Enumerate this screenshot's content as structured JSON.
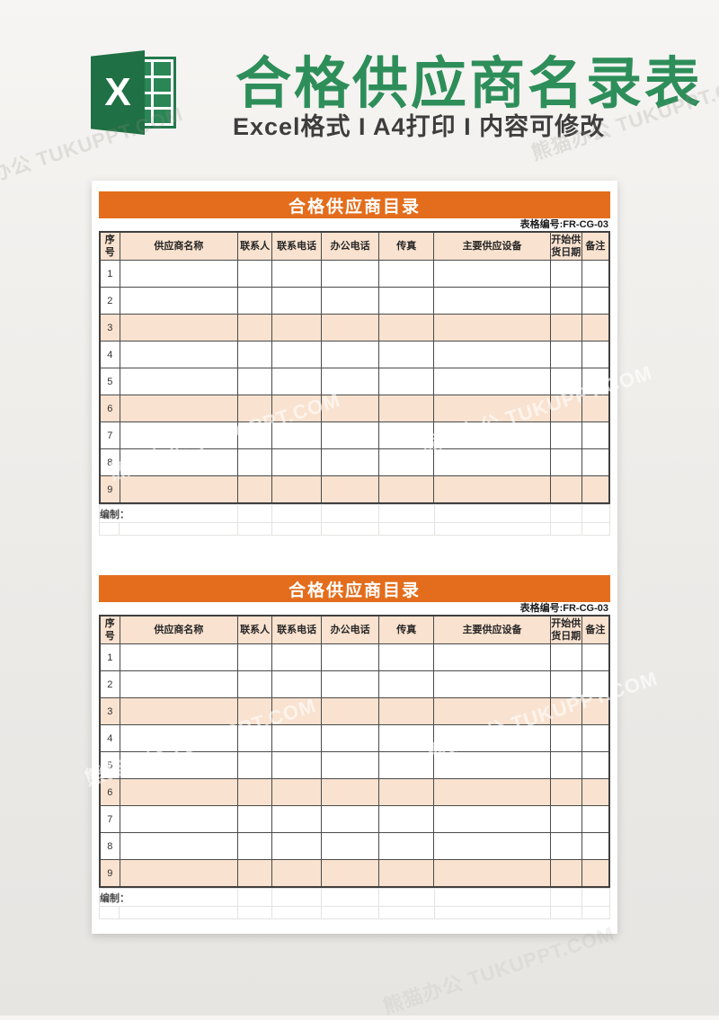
{
  "banner": {
    "title": "合格供应商名录表",
    "subtitle": "Excel格式 I A4打印 I 内容可修改",
    "logo_letter": "X",
    "title_color": "#2e8e5a",
    "logo_green": "#1f7044"
  },
  "watermark": {
    "text": "熊猫办公 TUKUPPT.COM"
  },
  "table": {
    "title": "合格供应商目录",
    "code": "表格编号:FR-CG-03",
    "accent_color": "#e36d1c",
    "shade_color": "#f9e2cf",
    "columns": [
      "序号",
      "供应商名称",
      "联系人",
      "联系电话",
      "办公电话",
      "传真",
      "主要供应设备",
      "开始供货日期",
      "备注"
    ],
    "rows": [
      "1",
      "2",
      "3",
      "4",
      "5",
      "6",
      "7",
      "8",
      "9"
    ],
    "shaded_rows": [
      3,
      6,
      9
    ],
    "footer_label": "编制："
  }
}
